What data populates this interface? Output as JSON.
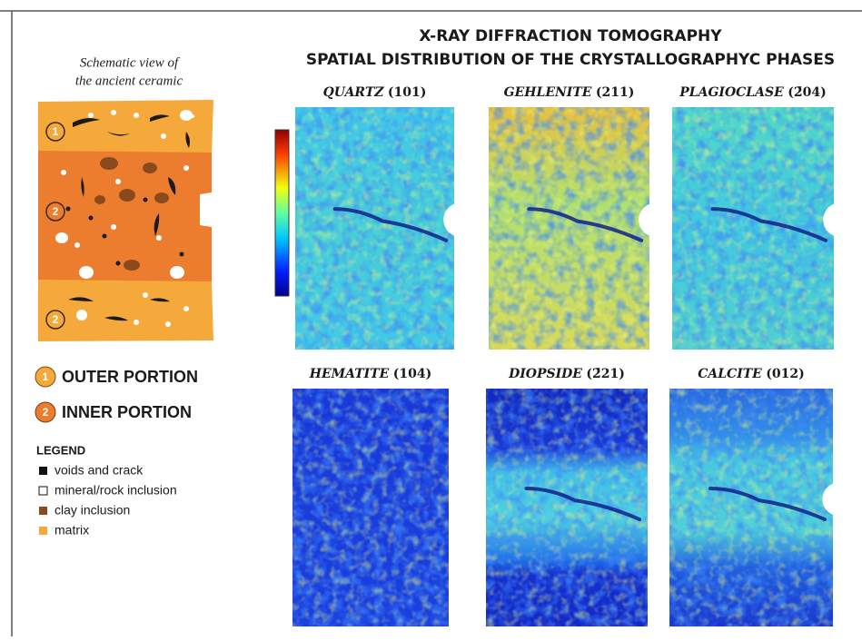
{
  "header": {
    "title_lines": [
      "X-RAY DIFFRACTION TOMOGRAPHY",
      "SPATIAL DISTRIBUTION OF THE CRYSTALLOGRAPHYC PHASES"
    ]
  },
  "schematic": {
    "caption_lines": [
      "Schematic view of",
      "the ancient ceramic"
    ],
    "markers": [
      "1",
      "2",
      "2"
    ]
  },
  "portions": [
    {
      "badge": "1",
      "label": "OUTER PORTION"
    },
    {
      "badge": "2",
      "label": "INNER PORTION"
    }
  ],
  "legend": {
    "title": "LEGEND",
    "items": [
      "voids and crack",
      "mineral/rock inclusion",
      "clay inclusion",
      "matrix"
    ]
  },
  "panels": [
    {
      "name": "QUARTZ",
      "index": "(101)"
    },
    {
      "name": "GEHLENITE",
      "index": "(211)"
    },
    {
      "name": "PLAGIOCLASE",
      "index": "(2̄04)"
    },
    {
      "name": "HEMATITE",
      "index": "(104)"
    },
    {
      "name": "DIOPSIDE",
      "index": "(2̄21)"
    },
    {
      "name": "CALCITE",
      "index": "(012)"
    }
  ]
}
